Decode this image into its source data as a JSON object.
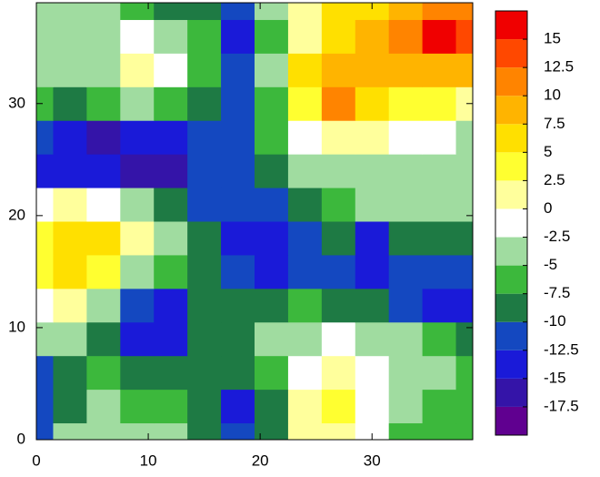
{
  "chart_data": {
    "type": "contour",
    "x": [
      0,
      3,
      6,
      9,
      12,
      15,
      18,
      21,
      24,
      27,
      30,
      33,
      36,
      39
    ],
    "y": [
      0,
      3,
      6,
      9,
      12,
      15,
      18,
      21,
      24,
      27,
      30,
      33,
      36,
      39
    ],
    "z": [
      [
        -11,
        -5,
        -3,
        -4,
        -5,
        -8,
        -12,
        -8,
        0,
        2,
        -2,
        -6,
        -6,
        -6
      ],
      [
        -12,
        -8,
        -5,
        -6,
        -6,
        -9,
        -13,
        -8,
        1,
        4,
        -1,
        -5,
        -6,
        -6
      ],
      [
        -12,
        -9,
        -7,
        -9,
        -10,
        -8,
        -9,
        -6,
        -1,
        1,
        -2,
        -4,
        -5,
        -6
      ],
      [
        -4,
        -3,
        -8,
        -14,
        -15,
        -9,
        -8,
        -5,
        -3,
        -2,
        -3,
        -4,
        -6,
        -8
      ],
      [
        -1,
        0,
        -3,
        -11,
        -14,
        -8,
        -10,
        -8,
        -7,
        -8,
        -10,
        -11,
        -13,
        -14
      ],
      [
        4,
        5,
        3,
        -4,
        -6,
        -8,
        -12,
        -13,
        -11,
        -12,
        -15,
        -12,
        -12,
        -11
      ],
      [
        4,
        6,
        5,
        0,
        -5,
        -9,
        -14,
        -15,
        -11,
        -10,
        -13,
        -10,
        -8,
        -8
      ],
      [
        -2,
        0,
        -1,
        -4,
        -8,
        -11,
        -12,
        -11,
        -8,
        -6,
        -5,
        -4,
        -4,
        -4
      ],
      [
        -13,
        -15,
        -15,
        -17,
        -16,
        -12,
        -12,
        -8,
        -5,
        -3,
        -3,
        -3,
        -3,
        -3
      ],
      [
        -12,
        -14,
        -16,
        -14,
        -13,
        -12,
        -11,
        -7,
        -1,
        1,
        0,
        -1,
        -2,
        -3
      ],
      [
        -6,
        -8,
        -6,
        -5,
        -6,
        -9,
        -12,
        -6,
        3,
        10,
        6,
        4,
        3,
        1
      ],
      [
        -3,
        -4,
        -3,
        0,
        -1,
        -6,
        -11,
        -5,
        5,
        9,
        8,
        8,
        9,
        8
      ],
      [
        -3,
        -3,
        -4,
        -2,
        -3,
        -7,
        -13,
        -6,
        2,
        7,
        9,
        11,
        16,
        13
      ],
      [
        -3,
        -3,
        -5,
        -6,
        -8,
        -8,
        -11,
        -5,
        0,
        5,
        7,
        9,
        11,
        10
      ]
    ],
    "xlim": [
      0,
      39
    ],
    "ylim": [
      0,
      39
    ],
    "xticks": [
      0,
      10,
      20,
      30
    ],
    "yticks": [
      0,
      10,
      20,
      30
    ],
    "clim": [
      -20,
      17.5
    ],
    "colorbar_ticks": [
      -17.5,
      -15,
      -12.5,
      -10,
      -7.5,
      -5,
      -2.5,
      0,
      2.5,
      5,
      7.5,
      10,
      12.5,
      15
    ],
    "colors": [
      "#600090",
      "#3414a8",
      "#1a1ad8",
      "#1448c0",
      "#1e7a44",
      "#3cb83c",
      "#a0dca0",
      "#ffffff",
      "#ffff9c",
      "#ffff30",
      "#ffe000",
      "#ffb400",
      "#ff8400",
      "#ff4800",
      "#f00000"
    ]
  }
}
